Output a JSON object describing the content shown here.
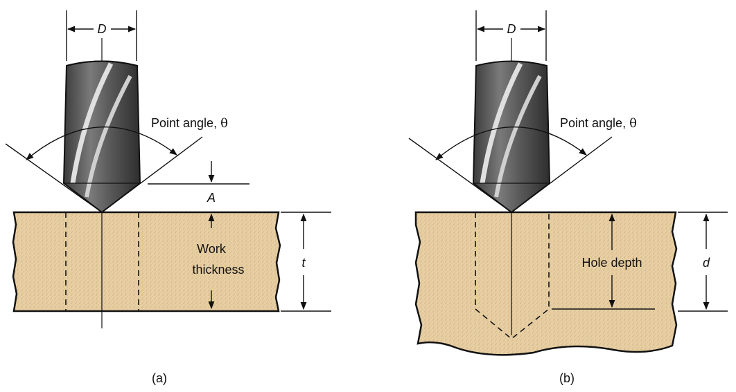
{
  "colors": {
    "work_fill": "#e8cfa3",
    "line": "#111111",
    "drill_dark": "#4a4a4a",
    "drill_light": "#d6d6d6"
  },
  "panel_a": {
    "caption": "(a)",
    "diameter_label": "D",
    "point_angle_label": "Point angle, ",
    "theta_symbol": "θ",
    "approach_label": "A",
    "work_label_line1": "Work",
    "work_label_line2": "thickness",
    "thickness_label": "t"
  },
  "panel_b": {
    "caption": "(b)",
    "diameter_label": "D",
    "point_angle_label": "Point angle, ",
    "theta_symbol": "θ",
    "hole_depth_label": "Hole depth",
    "depth_label": "d"
  }
}
